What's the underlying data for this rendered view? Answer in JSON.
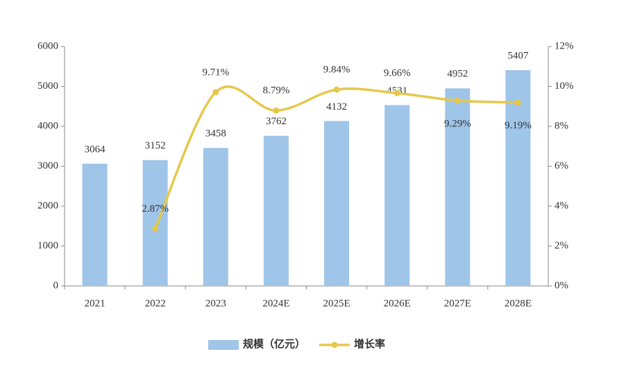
{
  "chart_data": {
    "type": "bar_line",
    "categories": [
      "2021",
      "2022",
      "2023",
      "2024E",
      "2025E",
      "2026E",
      "2027E",
      "2028E"
    ],
    "series": [
      {
        "name": "规模（亿元）",
        "color": "#9fc5e8",
        "type": "bar",
        "values": [
          3064,
          3152,
          3458,
          3762,
          4132,
          4531,
          4952,
          5407
        ]
      },
      {
        "name": "增长率",
        "color": "#e6c84c",
        "type": "line",
        "axis": "y2",
        "values": [
          null,
          2.87,
          9.71,
          8.79,
          9.84,
          9.66,
          9.29,
          9.19
        ],
        "value_labels": [
          null,
          "2.87%",
          "9.71%",
          "8.79%",
          "9.84%",
          "9.66%",
          "9.29%",
          "9.19%"
        ]
      }
    ],
    "ylim": [
      0,
      6000
    ],
    "yticks": [
      0,
      1000,
      2000,
      3000,
      4000,
      5000,
      6000
    ],
    "y2lim": [
      0,
      12
    ],
    "y2ticks": [
      {
        "value": 0,
        "label": "0%"
      },
      {
        "value": 2,
        "label": "2%"
      },
      {
        "value": 4,
        "label": "4%"
      },
      {
        "value": 6,
        "label": "6%"
      },
      {
        "value": 8,
        "label": "8%"
      },
      {
        "value": 10,
        "label": "10%"
      },
      {
        "value": 12,
        "label": "12%"
      }
    ],
    "legend": "bottom"
  }
}
